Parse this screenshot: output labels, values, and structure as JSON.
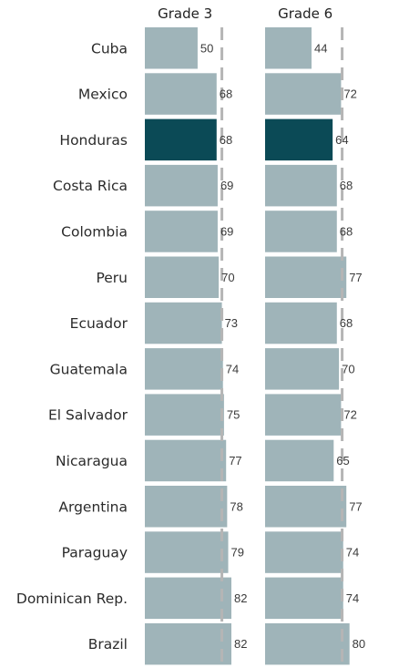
{
  "chart_data": {
    "type": "bar",
    "orientation": "horizontal",
    "categories": [
      "Cuba",
      "Mexico",
      "Honduras",
      "Costa Rica",
      "Colombia",
      "Peru",
      "Ecuador",
      "Guatemala",
      "El Salvador",
      "Nicaragua",
      "Argentina",
      "Paraguay",
      "Dominican Rep.",
      "Brazil"
    ],
    "highlighted_category": "Honduras",
    "panels": [
      {
        "title": "Grade 3",
        "values": [
          50,
          68,
          68,
          69,
          69,
          70,
          73,
          74,
          75,
          77,
          78,
          79,
          82,
          82
        ],
        "reference_line": 73
      },
      {
        "title": "Grade 6",
        "values": [
          44,
          72,
          64,
          68,
          68,
          77,
          68,
          70,
          72,
          65,
          77,
          74,
          74,
          80
        ],
        "reference_line": 73
      }
    ],
    "xlim": [
      0,
      90
    ],
    "colors": {
      "bar": "#9fb4b9",
      "highlight": "#0b4a56",
      "reference_line": "#b5b5b5"
    },
    "grid": false
  }
}
